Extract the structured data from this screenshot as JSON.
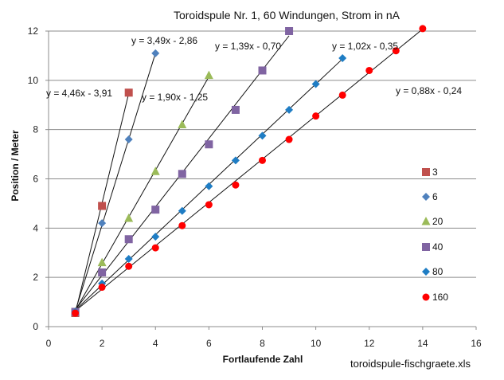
{
  "chart_data": {
    "type": "scatter",
    "title": "Toroidspule Nr. 1, 60 Windungen, Strom in nA",
    "xlabel": "Fortlaufende Zahl",
    "ylabel": "Position / Meter",
    "xlim": [
      0,
      16
    ],
    "ylim": [
      0,
      12
    ],
    "x_ticks": [
      "0",
      "2",
      "4",
      "6",
      "8",
      "10",
      "12",
      "14",
      "16"
    ],
    "y_ticks": [
      "0",
      "2",
      "4",
      "6",
      "8",
      "10",
      "12"
    ],
    "grid": "horizontal",
    "legend_position": "right",
    "series": [
      {
        "name": "3",
        "marker": "square",
        "color": "#C0504D",
        "x": [
          1,
          2,
          3
        ],
        "y": [
          0.55,
          4.9,
          9.5
        ],
        "trendline": {
          "slope": 4.46,
          "intercept": -3.91,
          "x_range": [
            1,
            3
          ],
          "equation": "y = 4,46x - 3,91"
        }
      },
      {
        "name": "6",
        "marker": "diamond",
        "color": "#4F81BD",
        "x": [
          1,
          2,
          3,
          4
        ],
        "y": [
          0.6,
          4.2,
          7.6,
          11.1
        ],
        "trendline": {
          "slope": 3.49,
          "intercept": -2.86,
          "x_range": [
            1,
            4
          ],
          "equation": "y = 3,49x - 2,86"
        }
      },
      {
        "name": "20",
        "marker": "triangle",
        "color": "#9BBB59",
        "x": [
          1,
          2,
          3,
          4,
          5,
          6
        ],
        "y": [
          0.6,
          2.6,
          4.4,
          6.3,
          8.2,
          10.2
        ],
        "trendline": {
          "slope": 1.9,
          "intercept": -1.25,
          "x_range": [
            1,
            6
          ],
          "equation": "y = 1,90x - 1,25"
        }
      },
      {
        "name": "40",
        "marker": "square",
        "color": "#8064A2",
        "x": [
          1,
          2,
          3,
          4,
          5,
          6,
          7,
          8,
          9
        ],
        "y": [
          0.6,
          2.2,
          3.55,
          4.75,
          6.2,
          7.4,
          8.8,
          10.4,
          12.0
        ],
        "trendline": {
          "slope": 1.39,
          "intercept": -0.7,
          "x_range": [
            1,
            9
          ],
          "equation": "y = 1,39x - 0,70"
        }
      },
      {
        "name": "80",
        "marker": "diamond",
        "color": "#1F7DC4",
        "x": [
          1,
          2,
          3,
          4,
          5,
          6,
          7,
          8,
          9,
          10,
          11
        ],
        "y": [
          0.6,
          1.75,
          2.75,
          3.65,
          4.7,
          5.7,
          6.75,
          7.75,
          8.8,
          9.85,
          10.9
        ],
        "trendline": {
          "slope": 1.02,
          "intercept": -0.35,
          "x_range": [
            1,
            11
          ],
          "equation": "y = 1,02x - 0,35"
        }
      },
      {
        "name": "160",
        "marker": "circle",
        "color": "#FF0000",
        "x": [
          1,
          2,
          3,
          4,
          5,
          6,
          7,
          8,
          9,
          10,
          11,
          12,
          13,
          14
        ],
        "y": [
          0.55,
          1.6,
          2.45,
          3.2,
          4.1,
          4.95,
          5.75,
          6.75,
          7.6,
          8.55,
          9.4,
          10.4,
          11.2,
          12.1
        ],
        "trendline": {
          "slope": 0.88,
          "intercept": -0.24,
          "x_range": [
            1,
            14
          ],
          "equation": "y = 0,88x - 0,24"
        }
      }
    ]
  },
  "source_file": "toroidspule-fischgraete.xls"
}
